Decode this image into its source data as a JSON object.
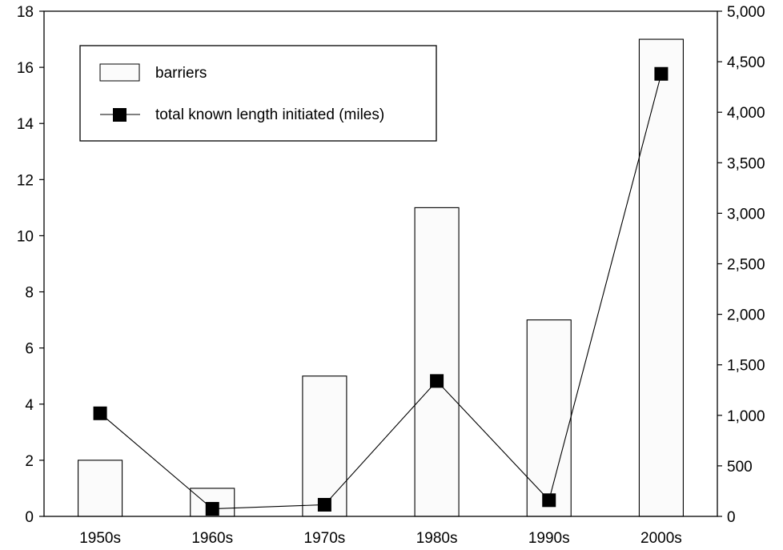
{
  "chart_data": {
    "type": "bar",
    "categories": [
      "1950s",
      "1960s",
      "1970s",
      "1980s",
      "1990s",
      "2000s"
    ],
    "series": [
      {
        "name": "barriers",
        "type": "bar",
        "axis": "left",
        "values": [
          2,
          1,
          5,
          11,
          7,
          17
        ]
      },
      {
        "name": "total known length initiated (miles)",
        "type": "line",
        "axis": "right",
        "values": [
          1020,
          75,
          115,
          1340,
          160,
          4380
        ]
      }
    ],
    "y_left": {
      "range": [
        0,
        18
      ],
      "ticks": [
        0,
        2,
        4,
        6,
        8,
        10,
        12,
        14,
        16,
        18
      ],
      "tick_labels": [
        "0",
        "2",
        "4",
        "6",
        "8",
        "10",
        "12",
        "14",
        "16",
        "18"
      ]
    },
    "y_right": {
      "range": [
        0,
        5000
      ],
      "ticks": [
        0,
        500,
        1000,
        1500,
        2000,
        2500,
        3000,
        3500,
        4000,
        4500,
        5000
      ],
      "tick_labels": [
        "0",
        "500",
        "1,000",
        "1,500",
        "2,000",
        "2,500",
        "3,000",
        "3,500",
        "4,000",
        "4,500",
        "5,000"
      ]
    },
    "legend": {
      "placement": "top-left",
      "entries": [
        "barriers",
        "total known length initiated (miles)"
      ]
    },
    "grid": false,
    "colors": {
      "bar_fill": "#fbfbfb",
      "stroke": "#000000",
      "marker": "#000000"
    }
  }
}
